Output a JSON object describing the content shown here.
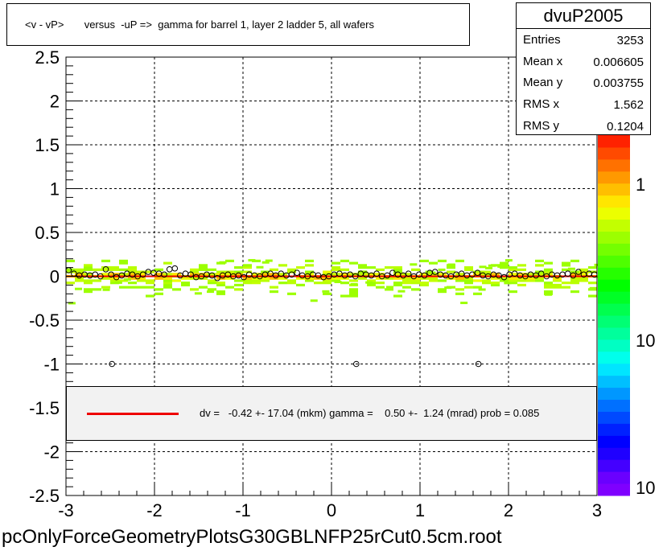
{
  "title": "<v - vP>       versus  -uP =>  gamma for barrel 1, layer 2 ladder 5, all wafers",
  "stats": {
    "name": "dvuP2005",
    "rows": [
      {
        "label": "Entries",
        "value": "3253"
      },
      {
        "label": "Mean x",
        "value": "0.006605"
      },
      {
        "label": "Mean y",
        "value": "0.003755"
      },
      {
        "label": "RMS x",
        "value": "1.562"
      },
      {
        "label": "RMS y",
        "value": "0.1204"
      }
    ]
  },
  "fit_legend": {
    "text": "dv =   -0.42 +- 17.04 (mkm) gamma =    0.50 +-  1.24 (mrad) prob = 0.085",
    "line_color": "#ee0000"
  },
  "footer": "pcOnlyForceGeometryPlotsG30GBLNFP25rCut0.5cm.root",
  "colors": {
    "fit_line": "#ee0000",
    "palette": [
      "#7f00ff",
      "#6a00ff",
      "#4400ff",
      "#1f00ff",
      "#0000ff",
      "#0021ff",
      "#0049ff",
      "#0070ff",
      "#0097ff",
      "#00bfff",
      "#00e5ff",
      "#00ffec",
      "#00ffc3",
      "#00ff9c",
      "#00ff74",
      "#00ff4e",
      "#00ff26",
      "#00ff00",
      "#26ff00",
      "#4eff00",
      "#74ff00",
      "#9cff00",
      "#c3ff00",
      "#ecff00",
      "#ffe600",
      "#ffbf00",
      "#ff9900",
      "#ff7100",
      "#ff4a00",
      "#ff2200"
    ]
  },
  "chart_data": {
    "type": "heatmap",
    "xlim": [
      -3,
      3
    ],
    "ylim": [
      -2.5,
      2.5
    ],
    "x_ticks": [
      "-3",
      "-2",
      "-1",
      "0",
      "1",
      "2",
      "3"
    ],
    "x_tick_values": [
      -3,
      -2,
      -1,
      0,
      1,
      2,
      3
    ],
    "y_ticks": [
      "-2.5",
      "-2",
      "-1.5",
      "-1",
      "-0.5",
      "0",
      "0.5",
      "1",
      "1.5",
      "2",
      "2.5"
    ],
    "y_tick_values": [
      -2.5,
      -2,
      -1.5,
      -1,
      -0.5,
      0,
      0.5,
      1,
      1.5,
      2,
      2.5
    ],
    "grid": true,
    "colorbar": {
      "scale": "log",
      "labels": [
        "1",
        "10",
        "10"
      ]
    },
    "profile_points": [
      {
        "x": -2.97,
        "y": 0.07
      },
      {
        "x": -2.91,
        "y": 0.03
      },
      {
        "x": -2.85,
        "y": 0.01
      },
      {
        "x": -2.79,
        "y": 0.02
      },
      {
        "x": -2.73,
        "y": 0.01
      },
      {
        "x": -2.67,
        "y": 0.02
      },
      {
        "x": -2.61,
        "y": 0.0
      },
      {
        "x": -2.55,
        "y": 0.08
      },
      {
        "x": -2.49,
        "y": 0.02
      },
      {
        "x": -2.43,
        "y": -0.01
      },
      {
        "x": -2.37,
        "y": 0.01
      },
      {
        "x": -2.31,
        "y": 0.03
      },
      {
        "x": -2.25,
        "y": 0.02
      },
      {
        "x": -2.19,
        "y": 0.0
      },
      {
        "x": -2.13,
        "y": 0.02
      },
      {
        "x": -2.07,
        "y": 0.05
      },
      {
        "x": -2.01,
        "y": 0.04
      },
      {
        "x": -1.95,
        "y": 0.03
      },
      {
        "x": -1.89,
        "y": 0.02
      },
      {
        "x": -1.83,
        "y": 0.08
      },
      {
        "x": -1.77,
        "y": 0.09
      },
      {
        "x": -1.71,
        "y": 0.01
      },
      {
        "x": -1.65,
        "y": 0.03
      },
      {
        "x": -1.59,
        "y": 0.02
      },
      {
        "x": -1.53,
        "y": -0.01
      },
      {
        "x": -1.47,
        "y": 0.0
      },
      {
        "x": -1.41,
        "y": 0.02
      },
      {
        "x": -1.35,
        "y": 0.01
      },
      {
        "x": -1.29,
        "y": -0.02
      },
      {
        "x": -1.23,
        "y": 0.01
      },
      {
        "x": -1.17,
        "y": 0.02
      },
      {
        "x": -1.11,
        "y": 0.0
      },
      {
        "x": -1.05,
        "y": 0.01
      },
      {
        "x": -0.99,
        "y": -0.01
      },
      {
        "x": -0.93,
        "y": 0.02
      },
      {
        "x": -0.87,
        "y": 0.01
      },
      {
        "x": -0.81,
        "y": 0.0
      },
      {
        "x": -0.75,
        "y": 0.02
      },
      {
        "x": -0.69,
        "y": 0.03
      },
      {
        "x": -0.63,
        "y": 0.01
      },
      {
        "x": -0.57,
        "y": 0.03
      },
      {
        "x": -0.51,
        "y": 0.01
      },
      {
        "x": -0.45,
        "y": 0.02
      },
      {
        "x": -0.39,
        "y": 0.04
      },
      {
        "x": -0.33,
        "y": 0.01
      },
      {
        "x": -0.27,
        "y": 0.0
      },
      {
        "x": -0.21,
        "y": 0.02
      },
      {
        "x": -0.15,
        "y": 0.01
      },
      {
        "x": -0.09,
        "y": -0.01
      },
      {
        "x": -0.03,
        "y": 0.0
      },
      {
        "x": 0.03,
        "y": 0.02
      },
      {
        "x": 0.09,
        "y": 0.03
      },
      {
        "x": 0.15,
        "y": 0.01
      },
      {
        "x": 0.21,
        "y": 0.02
      },
      {
        "x": 0.27,
        "y": 0.0
      },
      {
        "x": 0.33,
        "y": 0.03
      },
      {
        "x": 0.39,
        "y": 0.02
      },
      {
        "x": 0.45,
        "y": 0.01
      },
      {
        "x": 0.51,
        "y": 0.03
      },
      {
        "x": 0.57,
        "y": 0.0
      },
      {
        "x": 0.63,
        "y": 0.01
      },
      {
        "x": 0.69,
        "y": 0.04
      },
      {
        "x": 0.75,
        "y": 0.02
      },
      {
        "x": 0.81,
        "y": 0.01
      },
      {
        "x": 0.87,
        "y": 0.03
      },
      {
        "x": 0.93,
        "y": 0.0
      },
      {
        "x": 0.99,
        "y": 0.02
      },
      {
        "x": 1.05,
        "y": 0.01
      },
      {
        "x": 1.11,
        "y": 0.04
      },
      {
        "x": 1.17,
        "y": 0.05
      },
      {
        "x": 1.23,
        "y": 0.02
      },
      {
        "x": 1.29,
        "y": 0.01
      },
      {
        "x": 1.35,
        "y": 0.0
      },
      {
        "x": 1.41,
        "y": 0.02
      },
      {
        "x": 1.47,
        "y": 0.03
      },
      {
        "x": 1.53,
        "y": 0.01
      },
      {
        "x": 1.59,
        "y": 0.02
      },
      {
        "x": 1.65,
        "y": 0.04
      },
      {
        "x": 1.71,
        "y": 0.01
      },
      {
        "x": 1.77,
        "y": 0.0
      },
      {
        "x": 1.83,
        "y": 0.02
      },
      {
        "x": 1.89,
        "y": 0.01
      },
      {
        "x": 1.95,
        "y": -0.01
      },
      {
        "x": 2.01,
        "y": 0.02
      },
      {
        "x": 2.07,
        "y": 0.03
      },
      {
        "x": 2.13,
        "y": 0.01
      },
      {
        "x": 2.19,
        "y": 0.0
      },
      {
        "x": 2.25,
        "y": 0.02
      },
      {
        "x": 2.31,
        "y": 0.01
      },
      {
        "x": 2.37,
        "y": 0.03
      },
      {
        "x": 2.43,
        "y": 0.0
      },
      {
        "x": 2.49,
        "y": 0.02
      },
      {
        "x": 2.55,
        "y": 0.01
      },
      {
        "x": 2.61,
        "y": 0.02
      },
      {
        "x": 2.67,
        "y": 0.03
      },
      {
        "x": 2.73,
        "y": 0.01
      },
      {
        "x": 2.79,
        "y": 0.05
      },
      {
        "x": 2.85,
        "y": 0.02
      },
      {
        "x": 2.91,
        "y": 0.03
      },
      {
        "x": 2.97,
        "y": 0.02
      },
      {
        "x": -2.48,
        "y": -1.0
      },
      {
        "x": 0.28,
        "y": -1.0
      },
      {
        "x": 1.66,
        "y": -1.0
      }
    ],
    "fit_line": {
      "x": [
        -3,
        3
      ],
      "y": [
        0.0,
        0.0
      ]
    }
  }
}
